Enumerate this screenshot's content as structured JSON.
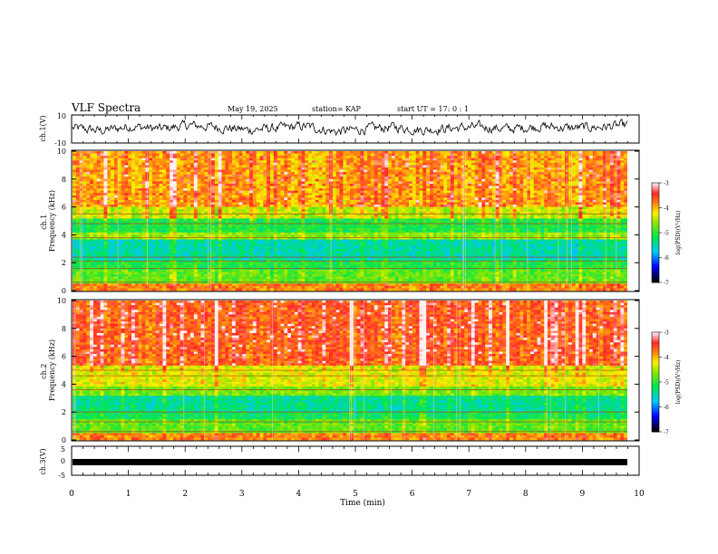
{
  "header": {
    "title": "VLF Spectra",
    "date": "May 19, 2025",
    "station": "station= KAP",
    "start": "start  UT  =   17: 0  : 1"
  },
  "colorbar": {
    "label": "log(PSD)(V²/Hz)",
    "ticks": [
      "-3",
      "-4",
      "-5",
      "-6",
      "-7"
    ],
    "colors": [
      "#ffffff",
      "#ff2020",
      "#ffff00",
      "#00ff00",
      "#00ffff",
      "#0000ff",
      "#000000"
    ]
  },
  "chart_data": [
    {
      "type": "line",
      "ylabel": "ch.1(V)",
      "ylim": [
        -10,
        10
      ],
      "yticks": [
        "10",
        "-10"
      ],
      "xlim": [
        0,
        10
      ],
      "note": "noisy waveform oscillating roughly between -5 and +5 V",
      "series": [
        {
          "values": [
            1,
            -2,
            3,
            0,
            4,
            2,
            -1,
            1,
            3,
            -3,
            0,
            2,
            -1,
            1,
            2,
            0,
            3,
            1,
            2,
            4
          ]
        }
      ]
    },
    {
      "type": "heatmap",
      "ylabel": "ch.1\nFrequency (kHz)",
      "ylim": [
        0,
        10
      ],
      "yticks": [
        "0",
        "2",
        "4",
        "6",
        "8",
        "10"
      ],
      "xlim": [
        0,
        9.83
      ],
      "bands_kHz": [
        {
          "from": 0.0,
          "to": 0.5,
          "level": -3.8
        },
        {
          "from": 0.5,
          "to": 1.5,
          "level": -4.8
        },
        {
          "from": 1.5,
          "to": 2.2,
          "level": -5.1
        },
        {
          "from": 2.2,
          "to": 3.6,
          "level": -5.5
        },
        {
          "from": 3.6,
          "to": 4.2,
          "level": -4.6
        },
        {
          "from": 4.2,
          "to": 5.2,
          "level": -5.1
        },
        {
          "from": 5.2,
          "to": 6.0,
          "level": -4.4
        },
        {
          "from": 6.0,
          "to": 10.0,
          "level": -3.9
        }
      ]
    },
    {
      "type": "heatmap",
      "ylabel": "ch.2\nFrequency (kHz)",
      "ylim": [
        0,
        10
      ],
      "yticks": [
        "0",
        "2",
        "4",
        "6",
        "8",
        "10"
      ],
      "xlim": [
        0,
        9.83
      ],
      "bands_kHz": [
        {
          "from": 0.0,
          "to": 0.5,
          "level": -3.8
        },
        {
          "from": 0.5,
          "to": 1.5,
          "level": -4.8
        },
        {
          "from": 1.5,
          "to": 2.0,
          "level": -5.2
        },
        {
          "from": 2.0,
          "to": 3.2,
          "level": -5.4
        },
        {
          "from": 3.2,
          "to": 3.8,
          "level": -4.7
        },
        {
          "from": 3.8,
          "to": 5.4,
          "level": -4.3
        },
        {
          "from": 5.4,
          "to": 10.0,
          "level": -3.6
        }
      ]
    },
    {
      "type": "line",
      "ylabel": "ch.3(V)",
      "ylim": [
        -5,
        5
      ],
      "yticks": [
        "5",
        "0",
        "-5"
      ],
      "xlim": [
        0,
        10
      ],
      "xlabel": "Time (min)",
      "xticks": [
        "0",
        "1",
        "2",
        "3",
        "4",
        "5",
        "6",
        "7",
        "8",
        "9",
        "10"
      ],
      "note": "dense pulse train near -1.5 V",
      "series": [
        {
          "values": [
            -1.5,
            -1.5
          ]
        }
      ]
    }
  ]
}
